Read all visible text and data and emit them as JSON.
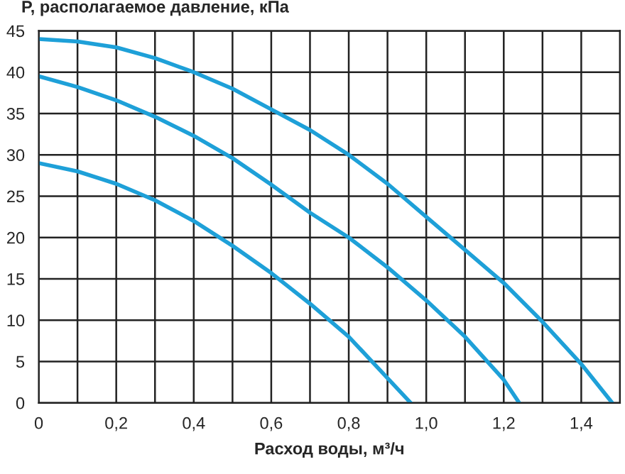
{
  "chart_data": {
    "type": "line",
    "ylabel": "P, располагаемое давление, кПа",
    "xlabel": "Расход воды, м³/ч",
    "xlim": [
      0,
      1.5
    ],
    "ylim": [
      0,
      45
    ],
    "xticks": [
      0,
      {
        "value": 0.1,
        "label": null
      },
      {
        "value": 0.2,
        "label": "0,2"
      },
      {
        "value": 0.3,
        "label": null
      },
      {
        "value": 0.4,
        "label": "0,4"
      },
      {
        "value": 0.5,
        "label": null
      },
      {
        "value": 0.6,
        "label": "0,6"
      },
      {
        "value": 0.7,
        "label": null
      },
      {
        "value": 0.8,
        "label": "0,8"
      },
      {
        "value": 0.9,
        "label": null
      },
      {
        "value": 1.0,
        "label": "1,0"
      },
      {
        "value": 1.1,
        "label": null
      },
      {
        "value": 1.2,
        "label": "1,2"
      },
      {
        "value": 1.3,
        "label": null
      },
      {
        "value": 1.4,
        "label": "1,4"
      },
      {
        "value": 1.5,
        "label": null
      }
    ],
    "yticks": [
      0,
      5,
      10,
      15,
      20,
      25,
      30,
      35,
      40,
      45
    ],
    "grid": true,
    "marker": "none",
    "line_style": "solid",
    "series": [
      {
        "color": "#1ea0d8",
        "x": [
          0,
          0.1,
          0.2,
          0.3,
          0.4,
          0.5,
          0.6,
          0.7,
          0.8,
          0.9,
          1.0,
          1.1,
          1.2,
          1.3,
          1.4,
          1.48
        ],
        "values": [
          44,
          43.7,
          43,
          41.7,
          40,
          38,
          35.5,
          33,
          30,
          26.5,
          22.5,
          18.5,
          14.5,
          9.8,
          4.7,
          0
        ]
      },
      {
        "color": "#1ea0d8",
        "x": [
          0,
          0.1,
          0.2,
          0.3,
          0.4,
          0.5,
          0.6,
          0.7,
          0.8,
          0.9,
          1.0,
          1.1,
          1.2,
          1.24
        ],
        "values": [
          39.5,
          38.2,
          36.6,
          34.6,
          32.3,
          29.6,
          26.4,
          23,
          20,
          16.4,
          12.4,
          8,
          2.8,
          0
        ]
      },
      {
        "color": "#1ea0d8",
        "x": [
          0,
          0.1,
          0.2,
          0.3,
          0.4,
          0.5,
          0.6,
          0.7,
          0.8,
          0.9,
          0.96
        ],
        "values": [
          29,
          28,
          26.5,
          24.5,
          22,
          19,
          15.7,
          12,
          8,
          3,
          0
        ]
      }
    ]
  }
}
